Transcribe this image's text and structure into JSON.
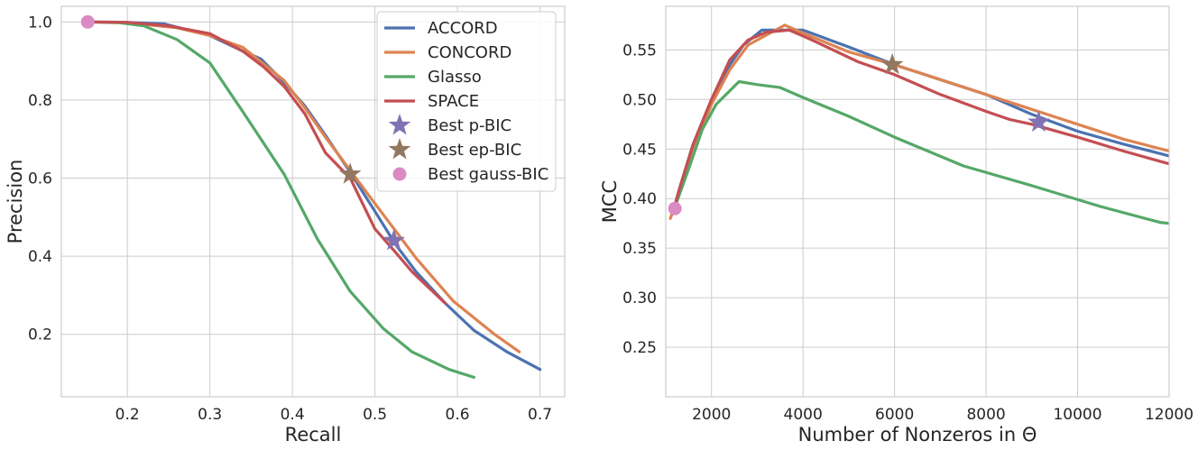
{
  "colors": {
    "ACCORD": "#4c72b0",
    "CONCORD": "#dd8452",
    "Glasso": "#55a868",
    "SPACE": "#c44e52",
    "best_p_bic": "#8172b3",
    "best_ep_bic": "#937860",
    "best_gauss_bic": "#da8bc3"
  },
  "chart_data": [
    {
      "type": "line",
      "xlabel": "Recall",
      "ylabel": "Precision",
      "xlim": [
        0.12,
        0.73
      ],
      "ylim": [
        0.04,
        1.04
      ],
      "xticks": [
        0.2,
        0.3,
        0.4,
        0.5,
        0.6,
        0.7
      ],
      "xtick_labels": [
        "0.2",
        "0.3",
        "0.4",
        "0.5",
        "0.6",
        "0.7"
      ],
      "yticks": [
        0.2,
        0.4,
        0.6,
        0.8,
        1.0
      ],
      "ytick_labels": [
        "0.2",
        "0.4",
        "0.6",
        "0.8",
        "1.0"
      ],
      "grid": true,
      "legend_position": "top-right",
      "series": [
        {
          "name": "ACCORD",
          "x": [
            0.152,
            0.2,
            0.245,
            0.3,
            0.335,
            0.362,
            0.39,
            0.415,
            0.44,
            0.47,
            0.5,
            0.525,
            0.55,
            0.585,
            0.62,
            0.66,
            0.7
          ],
          "y": [
            1.0,
            0.999,
            0.995,
            0.965,
            0.93,
            0.905,
            0.845,
            0.785,
            0.71,
            0.615,
            0.515,
            0.43,
            0.36,
            0.28,
            0.21,
            0.155,
            0.11
          ]
        },
        {
          "name": "CONCORD",
          "x": [
            0.152,
            0.2,
            0.26,
            0.3,
            0.34,
            0.39,
            0.415,
            0.44,
            0.47,
            0.5,
            0.525,
            0.55,
            0.595,
            0.645,
            0.675
          ],
          "y": [
            1.0,
            0.998,
            0.985,
            0.965,
            0.935,
            0.85,
            0.78,
            0.705,
            0.62,
            0.535,
            0.465,
            0.395,
            0.285,
            0.2,
            0.155
          ]
        },
        {
          "name": "Glasso",
          "x": [
            0.152,
            0.19,
            0.22,
            0.26,
            0.3,
            0.34,
            0.39,
            0.43,
            0.47,
            0.51,
            0.545,
            0.59,
            0.62
          ],
          "y": [
            1.0,
            0.998,
            0.99,
            0.955,
            0.895,
            0.77,
            0.61,
            0.445,
            0.31,
            0.215,
            0.155,
            0.11,
            0.09
          ]
        },
        {
          "name": "SPACE",
          "x": [
            0.152,
            0.2,
            0.25,
            0.3,
            0.34,
            0.365,
            0.39,
            0.415,
            0.44,
            0.47,
            0.5,
            0.525,
            0.545,
            0.565,
            0.585
          ],
          "y": [
            1.0,
            0.999,
            0.99,
            0.97,
            0.925,
            0.885,
            0.835,
            0.765,
            0.665,
            0.6,
            0.47,
            0.41,
            0.36,
            0.32,
            0.28
          ]
        }
      ],
      "markers": [
        {
          "name": "Best p-BIC",
          "shape": "star",
          "x": 0.523,
          "y": 0.44
        },
        {
          "name": "Best ep-BIC",
          "shape": "star",
          "x": 0.47,
          "y": 0.61
        },
        {
          "name": "Best gauss-BIC",
          "shape": "circle",
          "x": 0.152,
          "y": 1.0
        }
      ]
    },
    {
      "type": "line",
      "xlabel": "Number of Nonzeros in Θ",
      "ylabel": "MCC",
      "xlim": [
        1000,
        12000
      ],
      "ylim": [
        0.2,
        0.594
      ],
      "xticks": [
        2000,
        4000,
        6000,
        8000,
        10000,
        12000
      ],
      "xtick_labels": [
        "2000",
        "4000",
        "6000",
        "8000",
        "10000",
        "12000"
      ],
      "yticks": [
        0.25,
        0.3,
        0.35,
        0.4,
        0.45,
        0.5,
        0.55
      ],
      "ytick_labels": [
        "0.25",
        "0.30",
        "0.35",
        "0.40",
        "0.45",
        "0.50",
        "0.55"
      ],
      "grid": true,
      "series": [
        {
          "name": "ACCORD",
          "x": [
            1150,
            1300,
            1600,
            2000,
            2400,
            2700,
            3100,
            3500,
            4000,
            5000,
            6000,
            7000,
            8000,
            9000,
            10000,
            11000,
            12000
          ],
          "y": [
            0.385,
            0.41,
            0.455,
            0.5,
            0.535,
            0.555,
            0.57,
            0.57,
            0.57,
            0.553,
            0.535,
            0.52,
            0.505,
            0.485,
            0.468,
            0.455,
            0.443
          ]
        },
        {
          "name": "CONCORD",
          "x": [
            1100,
            1300,
            1600,
            2000,
            2400,
            2800,
            3200,
            3600,
            4000,
            5000,
            6000,
            7000,
            8000,
            9000,
            10000,
            11000,
            12000
          ],
          "y": [
            0.38,
            0.405,
            0.45,
            0.495,
            0.53,
            0.555,
            0.565,
            0.575,
            0.567,
            0.548,
            0.535,
            0.52,
            0.505,
            0.49,
            0.475,
            0.46,
            0.448
          ]
        },
        {
          "name": "Glasso",
          "x": [
            1150,
            1500,
            1800,
            2100,
            2600,
            3000,
            3500,
            4000,
            5000,
            6000,
            7500,
            9000,
            10500,
            11800,
            12000
          ],
          "y": [
            0.385,
            0.43,
            0.47,
            0.495,
            0.518,
            0.515,
            0.512,
            0.502,
            0.483,
            0.462,
            0.433,
            0.413,
            0.392,
            0.376,
            0.375
          ]
        },
        {
          "name": "SPACE",
          "x": [
            1150,
            1300,
            1600,
            2000,
            2400,
            2800,
            3200,
            3700,
            4200,
            5200,
            6000,
            7000,
            8000,
            8500,
            9000,
            10000,
            11000,
            12000
          ],
          "y": [
            0.385,
            0.41,
            0.455,
            0.5,
            0.54,
            0.56,
            0.568,
            0.57,
            0.56,
            0.538,
            0.525,
            0.505,
            0.488,
            0.48,
            0.475,
            0.462,
            0.448,
            0.435
          ]
        }
      ],
      "markers": [
        {
          "name": "Best p-BIC",
          "shape": "star",
          "x": 9150,
          "y": 0.477
        },
        {
          "name": "Best ep-BIC",
          "shape": "star",
          "x": 5950,
          "y": 0.535
        },
        {
          "name": "Best gauss-BIC",
          "shape": "circle",
          "x": 1200,
          "y": 0.39
        }
      ]
    }
  ],
  "legend": {
    "items": [
      {
        "label": "ACCORD",
        "kind": "line",
        "color_key": "ACCORD"
      },
      {
        "label": "CONCORD",
        "kind": "line",
        "color_key": "CONCORD"
      },
      {
        "label": "Glasso",
        "kind": "line",
        "color_key": "Glasso"
      },
      {
        "label": "SPACE",
        "kind": "line",
        "color_key": "SPACE"
      },
      {
        "label": "Best p-BIC",
        "kind": "star",
        "color_key": "best_p_bic"
      },
      {
        "label": "Best ep-BIC",
        "kind": "star",
        "color_key": "best_ep_bic"
      },
      {
        "label": "Best gauss-BIC",
        "kind": "circle",
        "color_key": "best_gauss_bic"
      }
    ]
  }
}
